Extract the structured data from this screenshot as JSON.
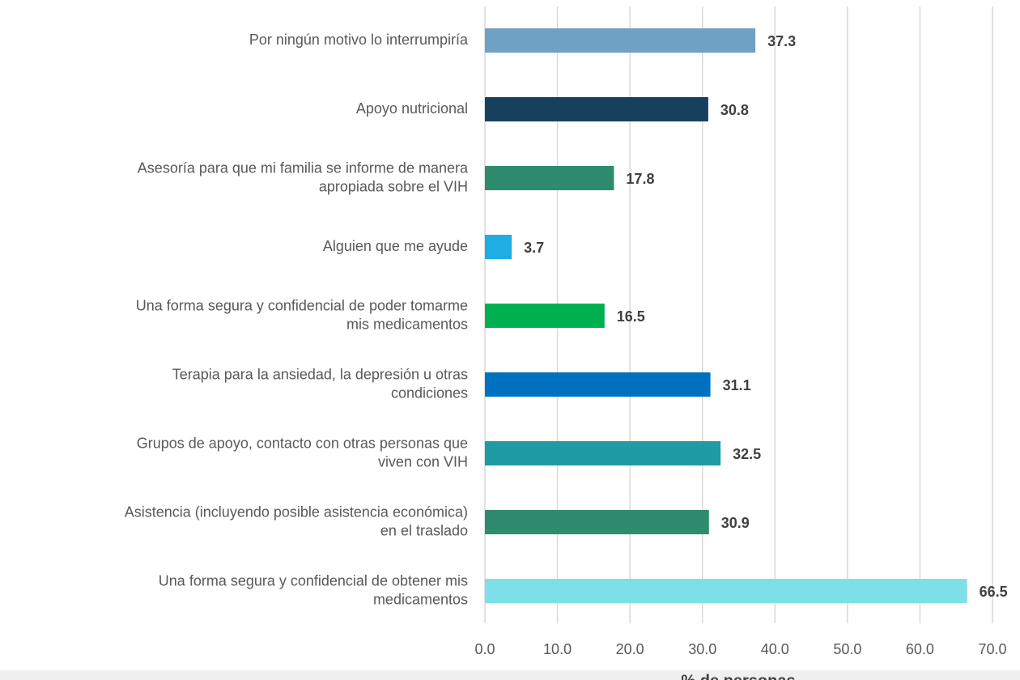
{
  "chart_data": {
    "type": "bar",
    "orientation": "horizontal",
    "categories": [
      [
        "Por ningún motivo lo interrumpiría"
      ],
      [
        "Apoyo nutricional"
      ],
      [
        "Asesoría para que mi familia se informe de manera",
        "apropiada sobre el VIH"
      ],
      [
        "Alguien que me ayude"
      ],
      [
        "Una forma segura y confidencial de  poder tomarme",
        "mis medicamentos"
      ],
      [
        "Terapia para la ansiedad, la depresión u otras",
        "condiciones"
      ],
      [
        "Grupos de apoyo, contacto con otras personas que",
        "viven con VIH"
      ],
      [
        "Asistencia (incluyendo posible asistencia económica)",
        "en el traslado"
      ],
      [
        "Una forma segura y confidencial de obtener mis",
        "medicamentos"
      ]
    ],
    "values": [
      37.3,
      30.8,
      17.8,
      3.7,
      16.5,
      31.1,
      32.5,
      30.9,
      66.5
    ],
    "colors": [
      "#6fa1c4",
      "#17405f",
      "#2e8b6e",
      "#1fade4",
      "#00b050",
      "#0070c0",
      "#1e9ba3",
      "#2e8b6e",
      "#7de0e8"
    ],
    "xlim": [
      0,
      70
    ],
    "xticks": [
      {
        "value": 0,
        "label": "0.0"
      },
      {
        "value": 10,
        "label": "10.0"
      },
      {
        "value": 20,
        "label": "20.0"
      },
      {
        "value": 30,
        "label": "30.0"
      },
      {
        "value": 40,
        "label": "40.0"
      },
      {
        "value": 50,
        "label": "50.0"
      },
      {
        "value": 60,
        "label": "60.0"
      },
      {
        "value": 70,
        "label": "70.0"
      }
    ],
    "xlabel": "% de personas",
    "grid": true
  }
}
